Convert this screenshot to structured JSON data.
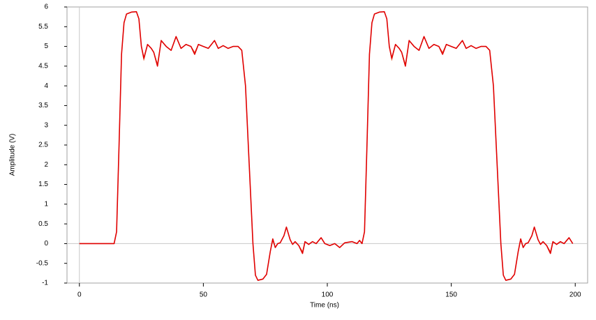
{
  "chart_data": {
    "type": "line",
    "x_label": "Time (ns)",
    "y_label": "Amplitude (V)",
    "xlim": [
      -5,
      205
    ],
    "ylim": [
      -1,
      6
    ],
    "xticks": [
      0,
      50,
      100,
      150,
      200
    ],
    "yticks": [
      -1,
      -0.5,
      0,
      0.5,
      1,
      1.5,
      2,
      2.5,
      3,
      3.5,
      4,
      4.5,
      5,
      5.5,
      6
    ],
    "zero_lines": true,
    "x": [
      0,
      14,
      15,
      16,
      17,
      18,
      19,
      21,
      23,
      24,
      25,
      26,
      27.5,
      29,
      30,
      31.5,
      33,
      35,
      37,
      39,
      41,
      43,
      45,
      46.5,
      48,
      50,
      52,
      54.5,
      56,
      58,
      60,
      62,
      64,
      65.5,
      67,
      68.5,
      70,
      71,
      72,
      74,
      75.5,
      77,
      78,
      79,
      80,
      81,
      82.5,
      83.5,
      85,
      86,
      87,
      88.5,
      90,
      91,
      92.5,
      94,
      95.5,
      97.5,
      99,
      101,
      103,
      105,
      107,
      110,
      112,
      113,
      114,
      115,
      116,
      117,
      118,
      119,
      121,
      123,
      124,
      125,
      126,
      127.5,
      129,
      130,
      131.5,
      133,
      135,
      137,
      139,
      141,
      143,
      145,
      146.5,
      148,
      150,
      152,
      154.5,
      156,
      158,
      160,
      162,
      164,
      165.5,
      167,
      168.5,
      170,
      171,
      172,
      174,
      175.5,
      177,
      178,
      179,
      180,
      181,
      182.5,
      183.5,
      185,
      186,
      187,
      188.5,
      190,
      191,
      192.5,
      194,
      195.5,
      197.5,
      199
    ],
    "series": [
      {
        "color": "#e8704a",
        "width": 1,
        "values": [
          0,
          0,
          0.3,
          2.5,
          4.8,
          5.6,
          5.82,
          5.87,
          5.88,
          5.7,
          5.0,
          4.65,
          5.05,
          4.95,
          4.85,
          4.55,
          5.15,
          5.0,
          4.9,
          5.25,
          4.95,
          5.05,
          5.0,
          4.85,
          5.05,
          5.0,
          4.95,
          5.15,
          4.95,
          5.02,
          4.95,
          5.0,
          5.0,
          4.9,
          4.0,
          2.0,
          0.0,
          -0.8,
          -0.93,
          -0.9,
          -0.78,
          -0.2,
          0.08,
          -0.1,
          0.0,
          0.02,
          0.2,
          0.42,
          0.1,
          -0.02,
          0.05,
          -0.05,
          -0.2,
          0.05,
          -0.02,
          0.05,
          0.0,
          0.15,
          0.0,
          -0.05,
          0.0,
          -0.1,
          0.02,
          0.05,
          0.0,
          0.08,
          0,
          0.3,
          2.5,
          4.8,
          5.6,
          5.82,
          5.87,
          5.88,
          5.7,
          5.0,
          4.65,
          5.05,
          4.95,
          4.85,
          4.55,
          5.15,
          5.0,
          4.9,
          5.25,
          4.95,
          5.05,
          5.0,
          4.85,
          5.05,
          5.0,
          4.95,
          5.15,
          4.95,
          5.02,
          4.95,
          5.0,
          5.0,
          4.9,
          4.0,
          2.0,
          0.0,
          -0.8,
          -0.93,
          -0.9,
          -0.78,
          -0.2,
          0.08,
          -0.1,
          0.0,
          0.02,
          0.2,
          0.42,
          0.1,
          -0.02,
          0.05,
          -0.05,
          -0.2,
          0.05,
          -0.02,
          0.05,
          0.0,
          0.15,
          0.0
        ]
      },
      {
        "color": "#e00000",
        "width": 1.6,
        "values": [
          0,
          0,
          0.3,
          2.5,
          4.8,
          5.6,
          5.82,
          5.87,
          5.88,
          5.7,
          5.0,
          4.7,
          5.05,
          4.95,
          4.85,
          4.5,
          5.15,
          5.0,
          4.9,
          5.25,
          4.95,
          5.05,
          5.0,
          4.8,
          5.05,
          5.0,
          4.95,
          5.15,
          4.95,
          5.02,
          4.95,
          5.0,
          5.0,
          4.9,
          4.0,
          2.0,
          0.0,
          -0.8,
          -0.93,
          -0.9,
          -0.78,
          -0.2,
          0.12,
          -0.1,
          0.0,
          0.02,
          0.2,
          0.42,
          0.1,
          -0.02,
          0.05,
          -0.05,
          -0.25,
          0.05,
          -0.02,
          0.05,
          0.0,
          0.15,
          0.0,
          -0.05,
          0.0,
          -0.1,
          0.02,
          0.05,
          0.0,
          0.08,
          0,
          0.3,
          2.5,
          4.8,
          5.6,
          5.82,
          5.87,
          5.88,
          5.7,
          5.0,
          4.7,
          5.05,
          4.95,
          4.85,
          4.5,
          5.15,
          5.0,
          4.9,
          5.25,
          4.95,
          5.05,
          5.0,
          4.8,
          5.05,
          5.0,
          4.95,
          5.15,
          4.95,
          5.02,
          4.95,
          5.0,
          5.0,
          4.9,
          4.0,
          2.0,
          0.0,
          -0.8,
          -0.93,
          -0.9,
          -0.78,
          -0.2,
          0.12,
          -0.1,
          0.0,
          0.02,
          0.2,
          0.42,
          0.1,
          -0.02,
          0.05,
          -0.05,
          -0.25,
          0.05,
          -0.02,
          0.05,
          0.0,
          0.15,
          0.0
        ]
      }
    ]
  }
}
